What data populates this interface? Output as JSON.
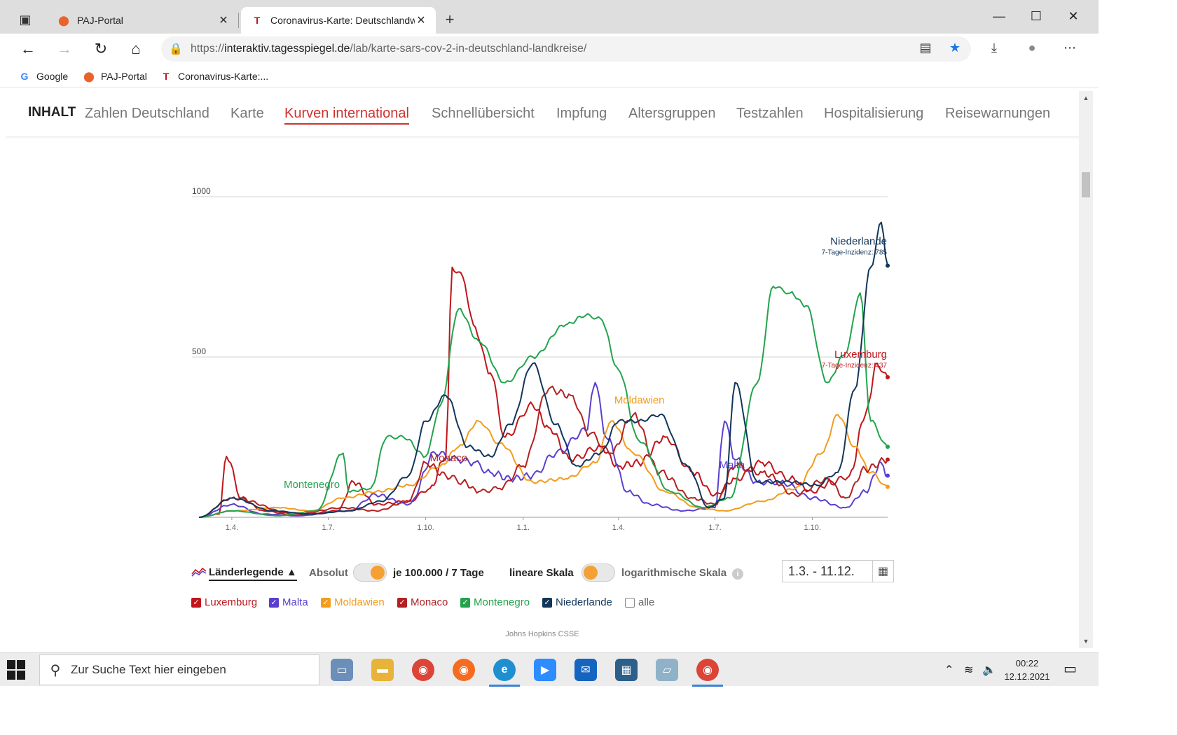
{
  "browser": {
    "tabs": [
      {
        "title": "PAJ-Portal",
        "icon": "pin-icon",
        "active": false
      },
      {
        "title": "Coronavirus-Karte: Deutschlandw",
        "icon": "tagesspiegel-icon",
        "active": true
      }
    ],
    "url_scheme": "https://",
    "url_host": "interaktiv.tagesspiegel.de",
    "url_path": "/lab/karte-sars-cov-2-in-deutschland-landkreise/",
    "bookmarks": [
      "Google",
      "PAJ-Portal",
      "Coronavirus-Karte:..."
    ]
  },
  "site_nav": {
    "label": "INHALT",
    "items": [
      "Zahlen Deutschland",
      "Karte",
      "Kurven international",
      "Schnellübersicht",
      "Impfung",
      "Altersgruppen",
      "Testzahlen",
      "Hospitalisierung",
      "Reisewarnungen"
    ],
    "active": "Kurven international"
  },
  "chart_data": {
    "type": "line",
    "y_ticks": [
      "1000",
      "500"
    ],
    "ylim": [
      0,
      1000
    ],
    "x_ticks": [
      "1.4.",
      "1.7.",
      "1.10.",
      "1.1.",
      "1.4.",
      "1.7.",
      "1.10."
    ],
    "x_range": [
      "2020-03-01",
      "2021-12-11"
    ],
    "grid": true,
    "series": [
      {
        "name": "Luxemburg",
        "color": "#c0161b",
        "sublabel": "7-Tage-Inzidenz: 437",
        "x": [
          "2020-03-01",
          "2020-03-20",
          "2020-03-27",
          "2020-04-10",
          "2020-05-01",
          "2020-06-01",
          "2020-07-10",
          "2020-07-25",
          "2020-08-15",
          "2020-09-15",
          "2020-10-05",
          "2020-10-20",
          "2020-10-26",
          "2020-11-05",
          "2020-11-15",
          "2020-12-01",
          "2020-12-15",
          "2021-01-10",
          "2021-01-25",
          "2021-02-15",
          "2021-03-15",
          "2021-04-01",
          "2021-04-20",
          "2021-05-15",
          "2021-06-10",
          "2021-07-01",
          "2021-07-20",
          "2021-08-15",
          "2021-09-10",
          "2021-10-01",
          "2021-10-20",
          "2021-11-05",
          "2021-11-20",
          "2021-12-01",
          "2021-12-11"
        ],
        "y": [
          0,
          10,
          190,
          60,
          20,
          5,
          20,
          110,
          40,
          50,
          90,
          190,
          780,
          750,
          600,
          450,
          250,
          350,
          280,
          180,
          220,
          160,
          170,
          250,
          140,
          70,
          120,
          170,
          120,
          80,
          110,
          130,
          320,
          480,
          437
        ]
      },
      {
        "name": "Malta",
        "color": "#5a3fcf",
        "sublabel": "",
        "x": [
          "2020-03-01",
          "2020-04-01",
          "2020-05-01",
          "2020-06-01",
          "2020-07-20",
          "2020-08-15",
          "2020-09-15",
          "2020-10-10",
          "2020-11-01",
          "2020-11-15",
          "2020-12-01",
          "2020-12-20",
          "2021-01-10",
          "2021-02-01",
          "2021-03-01",
          "2021-03-10",
          "2021-03-20",
          "2021-04-10",
          "2021-05-01",
          "2021-06-01",
          "2021-07-01",
          "2021-07-10",
          "2021-07-20",
          "2021-08-10",
          "2021-09-01",
          "2021-10-01",
          "2021-11-01",
          "2021-11-20",
          "2021-12-05",
          "2021-12-11"
        ],
        "y": [
          0,
          40,
          10,
          5,
          20,
          70,
          40,
          200,
          180,
          170,
          140,
          120,
          130,
          200,
          270,
          420,
          250,
          80,
          40,
          20,
          30,
          300,
          180,
          110,
          110,
          60,
          30,
          80,
          170,
          130
        ]
      },
      {
        "name": "Moldawien",
        "color": "#f39c1e",
        "sublabel": "",
        "x": [
          "2020-03-01",
          "2020-04-01",
          "2020-05-15",
          "2020-06-15",
          "2020-07-15",
          "2020-08-15",
          "2020-09-15",
          "2020-10-15",
          "2020-11-01",
          "2020-11-20",
          "2020-12-10",
          "2021-01-10",
          "2021-02-10",
          "2021-03-10",
          "2021-03-25",
          "2021-04-15",
          "2021-05-15",
          "2021-06-15",
          "2021-07-10",
          "2021-08-15",
          "2021-09-15",
          "2021-10-10",
          "2021-10-25",
          "2021-11-10",
          "2021-11-25",
          "2021-12-11"
        ],
        "y": [
          0,
          20,
          30,
          20,
          60,
          80,
          100,
          160,
          220,
          300,
          230,
          110,
          120,
          170,
          300,
          200,
          80,
          30,
          20,
          50,
          90,
          200,
          320,
          220,
          140,
          95
        ]
      },
      {
        "name": "Monaco",
        "color": "#b22222",
        "sublabel": "",
        "x": [
          "2020-03-01",
          "2020-04-01",
          "2020-06-01",
          "2020-07-15",
          "2020-08-15",
          "2020-09-15",
          "2020-10-01",
          "2020-10-20",
          "2020-11-05",
          "2020-11-20",
          "2020-12-10",
          "2021-01-01",
          "2021-01-25",
          "2021-02-15",
          "2021-03-05",
          "2021-03-25",
          "2021-04-15",
          "2021-05-10",
          "2021-06-10",
          "2021-07-01",
          "2021-07-20",
          "2021-08-15",
          "2021-09-15",
          "2021-10-15",
          "2021-11-01",
          "2021-11-20",
          "2021-12-11"
        ],
        "y": [
          0,
          60,
          10,
          30,
          20,
          50,
          170,
          130,
          110,
          80,
          90,
          160,
          400,
          380,
          260,
          200,
          320,
          140,
          60,
          40,
          160,
          140,
          70,
          120,
          60,
          150,
          180
        ]
      },
      {
        "name": "Montenegro",
        "color": "#23a34e",
        "sublabel": "",
        "x": [
          "2020-03-01",
          "2020-04-01",
          "2020-05-15",
          "2020-06-20",
          "2020-07-15",
          "2020-07-20",
          "2020-08-10",
          "2020-08-25",
          "2020-09-10",
          "2020-10-01",
          "2020-10-15",
          "2020-11-01",
          "2020-11-20",
          "2020-12-15",
          "2021-01-10",
          "2021-02-10",
          "2021-03-01",
          "2021-03-15",
          "2021-04-01",
          "2021-04-20",
          "2021-05-20",
          "2021-06-20",
          "2021-07-15",
          "2021-08-10",
          "2021-08-25",
          "2021-09-10",
          "2021-09-25",
          "2021-10-15",
          "2021-11-01",
          "2021-11-15",
          "2021-11-25",
          "2021-12-11"
        ],
        "y": [
          0,
          20,
          5,
          20,
          200,
          80,
          90,
          250,
          250,
          190,
          350,
          650,
          550,
          420,
          500,
          600,
          630,
          620,
          460,
          240,
          80,
          30,
          60,
          420,
          720,
          700,
          660,
          420,
          510,
          700,
          300,
          220
        ]
      },
      {
        "name": "Niederlande",
        "color": "#12365a",
        "sublabel": "7-Tage-Inzidenz: 785",
        "x": [
          "2020-03-01",
          "2020-04-01",
          "2020-05-10",
          "2020-06-15",
          "2020-07-20",
          "2020-08-20",
          "2020-09-15",
          "2020-10-01",
          "2020-10-20",
          "2020-11-10",
          "2020-12-01",
          "2020-12-20",
          "2021-01-10",
          "2021-02-01",
          "2021-02-20",
          "2021-03-15",
          "2021-04-01",
          "2021-04-20",
          "2021-05-10",
          "2021-06-05",
          "2021-06-25",
          "2021-07-10",
          "2021-07-20",
          "2021-08-10",
          "2021-09-10",
          "2021-10-05",
          "2021-10-25",
          "2021-11-10",
          "2021-11-25",
          "2021-12-05",
          "2021-12-11"
        ],
        "y": [
          0,
          60,
          20,
          10,
          20,
          50,
          130,
          300,
          380,
          220,
          190,
          290,
          480,
          290,
          160,
          200,
          300,
          300,
          320,
          160,
          30,
          60,
          420,
          110,
          110,
          100,
          140,
          400,
          780,
          920,
          785
        ]
      }
    ]
  },
  "series_labels": {
    "Luxemburg": "Luxemburg",
    "Malta": "Malta",
    "Moldawien": "Moldawien",
    "Monaco": "Monaco",
    "Montenegro": "Montenegro",
    "Niederlande": "Niederlande"
  },
  "controls": {
    "legend_toggle": "Länderlegende",
    "absolut": "Absolut",
    "per100k": "je 100.000 / 7 Tage",
    "linear": "lineare Skala",
    "log": "logarithmische Skala",
    "date_range": "1.3. - 11.12.",
    "countries": [
      {
        "name": "Luxemburg",
        "color": "#c0161b",
        "checked": true
      },
      {
        "name": "Malta",
        "color": "#5a3fcf",
        "checked": true
      },
      {
        "name": "Moldawien",
        "color": "#f39c1e",
        "checked": true
      },
      {
        "name": "Monaco",
        "color": "#b22222",
        "checked": true
      },
      {
        "name": "Montenegro",
        "color": "#23a34e",
        "checked": true
      },
      {
        "name": "Niederlande",
        "color": "#12365a",
        "checked": true
      }
    ],
    "all_label": "alle",
    "source": "Johns Hopkins CSSE"
  },
  "taskbar": {
    "search_placeholder": "Zur Suche Text hier eingeben",
    "time": "00:22",
    "date": "12.12.2021"
  }
}
